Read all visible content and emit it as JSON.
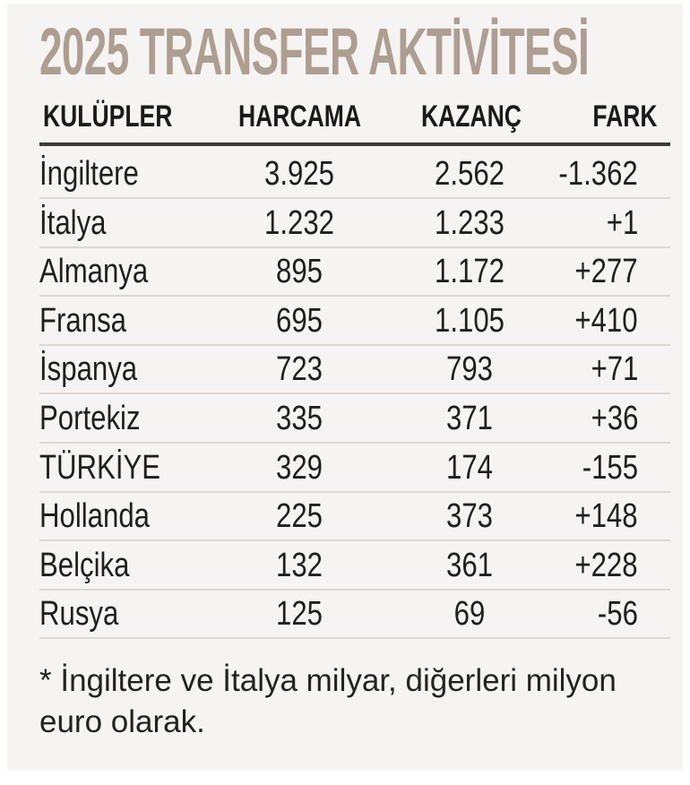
{
  "chart_data": {
    "type": "table",
    "title": "2025 TRANSFER AKTİVİTESİ",
    "columns": [
      "KULÜPLER",
      "HARCAMA",
      "KAZANÇ",
      "FARK"
    ],
    "rows": [
      [
        "İngiltere",
        "3.925",
        "2.562",
        "-1.362"
      ],
      [
        "İtalya",
        "1.232",
        "1.233",
        "+1"
      ],
      [
        "Almanya",
        "895",
        "1.172",
        "+277"
      ],
      [
        "Fransa",
        "695",
        "1.105",
        "+410"
      ],
      [
        "İspanya",
        "723",
        "793",
        "+71"
      ],
      [
        "Portekiz",
        "335",
        "371",
        "+36"
      ],
      [
        "TÜRKİYE",
        "329",
        "174",
        "-155"
      ],
      [
        "Hollanda",
        "225",
        "373",
        "+148"
      ],
      [
        "Belçika",
        "132",
        "361",
        "+228"
      ],
      [
        "Rusya",
        "125",
        "69",
        "-56"
      ]
    ],
    "note": "* İngiltere ve İtalya milyar, diğerleri milyon euro olarak.",
    "colors": {
      "title": "#ad9e92",
      "background": "#f6f4f2",
      "text": "#1f1f1f"
    }
  }
}
